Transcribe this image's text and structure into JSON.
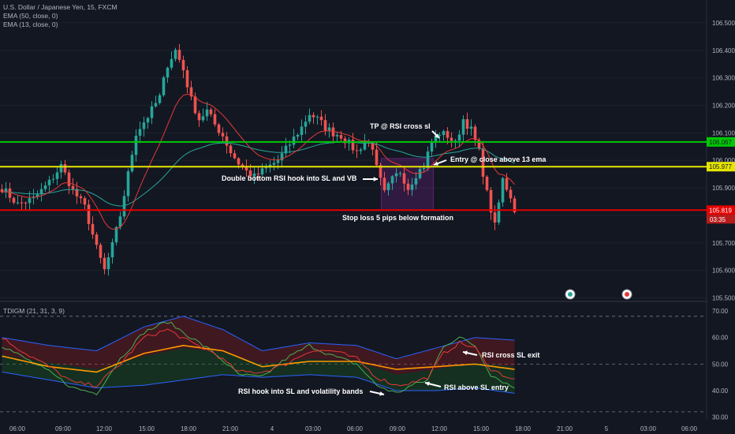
{
  "header": {
    "symbol": "U.S. Dollar / Japanese Yen, 15, FXCM",
    "ema50": "EMA (50, close, 0)",
    "ema13": "EMA (13, close, 0)"
  },
  "sub_header": {
    "indicator": "TDIGM (21, 31, 3, 9)"
  },
  "colors": {
    "background": "#131722",
    "up": "#26a69a",
    "down": "#ef5350",
    "green_line": "#00c805",
    "yellow_line": "#e5e500",
    "red_line": "#e50000",
    "ema13": "#e53935",
    "ema50": "#26a69a",
    "rsi": "#e53935",
    "signal": "#ff9800",
    "slow": "#4caf50",
    "bands": "#2962ff"
  },
  "annotations": {
    "tp": "TP @ RSI cross sl",
    "entry": "Entry @ close above 13 ema",
    "double_bottom": "Double bottom RSI hook into SL and VB",
    "stop_loss": "Stop loss 5 pips below formation",
    "rsi_cross": "RSI cross SL exit",
    "rsi_above": "RSI above SL entry",
    "rsi_hook": "RSI hook into SL and volatility bands"
  },
  "chart_data": [
    {
      "type": "candlestick",
      "name": "price",
      "y_ticks": [
        "106.500",
        "106.400",
        "106.300",
        "106.200",
        "106.100",
        "106.000",
        "105.900",
        "105.800",
        "105.700",
        "105.600",
        "105.500"
      ],
      "ylim": [
        105.49,
        106.56
      ],
      "x_ticks": [
        "06:00",
        "09:00",
        "12:00",
        "15:00",
        "18:00",
        "21:00",
        "4",
        "03:00",
        "06:00",
        "09:00",
        "12:00",
        "15:00",
        "18:00",
        "21:00",
        "5",
        "03:00",
        "06:00"
      ],
      "hlines": [
        {
          "label": "106.067",
          "value": 106.067,
          "color": "#00c805"
        },
        {
          "label": "105.977",
          "value": 105.977,
          "color": "#e5e500"
        },
        {
          "label": "105.819",
          "value": 105.819,
          "color": "#e50000"
        }
      ],
      "countdown": "03:35",
      "pivots": [
        [
          0,
          105.9
        ],
        [
          4,
          105.84
        ],
        [
          8,
          105.86
        ],
        [
          12,
          105.92
        ],
        [
          15,
          105.98
        ],
        [
          18,
          105.89
        ],
        [
          21,
          105.83
        ],
        [
          24,
          105.68
        ],
        [
          26,
          105.6
        ],
        [
          28,
          105.69
        ],
        [
          30,
          105.8
        ],
        [
          32,
          105.95
        ],
        [
          34,
          106.1
        ],
        [
          37,
          106.16
        ],
        [
          40,
          106.23
        ],
        [
          42,
          106.35
        ],
        [
          44,
          106.4
        ],
        [
          46,
          106.33
        ],
        [
          48,
          106.22
        ],
        [
          50,
          106.15
        ],
        [
          52,
          106.18
        ],
        [
          54,
          106.13
        ],
        [
          56,
          106.09
        ],
        [
          58,
          106.03
        ],
        [
          60,
          105.99
        ],
        [
          62,
          105.96
        ],
        [
          64,
          105.94
        ],
        [
          66,
          105.96
        ],
        [
          68,
          105.98
        ],
        [
          70,
          106.0
        ],
        [
          72,
          106.04
        ],
        [
          74,
          106.08
        ],
        [
          76,
          106.12
        ],
        [
          78,
          106.17
        ],
        [
          80,
          106.15
        ],
        [
          82,
          106.12
        ],
        [
          84,
          106.1
        ],
        [
          86,
          106.09
        ],
        [
          88,
          106.06
        ],
        [
          90,
          106.03
        ],
        [
          92,
          106.07
        ],
        [
          94,
          106.05
        ],
        [
          95,
          105.97
        ],
        [
          97,
          105.88
        ],
        [
          99,
          105.93
        ],
        [
          101,
          105.96
        ],
        [
          103,
          105.9
        ],
        [
          105,
          105.95
        ],
        [
          107,
          105.98
        ],
        [
          109,
          106.07
        ],
        [
          111,
          106.1
        ],
        [
          113,
          106.09
        ],
        [
          115,
          106.06
        ],
        [
          117,
          106.15
        ],
        [
          119,
          106.11
        ],
        [
          121,
          106.03
        ],
        [
          123,
          105.88
        ],
        [
          125,
          105.76
        ],
        [
          127,
          105.93
        ],
        [
          129,
          105.87
        ],
        [
          130,
          105.82
        ]
      ]
    },
    {
      "type": "line",
      "name": "TDIGM",
      "y_ticks": [
        "70.00",
        "60.00",
        "50.00",
        "40.00",
        "30.00"
      ],
      "ylim": [
        29,
        73
      ],
      "dashed_levels": [
        68,
        50,
        32
      ],
      "series": [
        {
          "key": "rsi",
          "pivots": [
            [
              0,
              60
            ],
            [
              6,
              54
            ],
            [
              12,
              49
            ],
            [
              18,
              43
            ],
            [
              24,
              42
            ],
            [
              30,
              50
            ],
            [
              36,
              60
            ],
            [
              42,
              63
            ],
            [
              48,
              58
            ],
            [
              54,
              54
            ],
            [
              60,
              47
            ],
            [
              66,
              47
            ],
            [
              72,
              50
            ],
            [
              78,
              55
            ],
            [
              84,
              55
            ],
            [
              90,
              52
            ],
            [
              95,
              45
            ],
            [
              100,
              42
            ],
            [
              104,
              43
            ],
            [
              108,
              45
            ],
            [
              112,
              54
            ],
            [
              116,
              58
            ],
            [
              120,
              56
            ],
            [
              124,
              48
            ],
            [
              130,
              44
            ]
          ]
        },
        {
          "key": "signal",
          "pivots": [
            [
              0,
              53
            ],
            [
              12,
              49
            ],
            [
              24,
              47
            ],
            [
              36,
              54
            ],
            [
              46,
              57
            ],
            [
              56,
              55
            ],
            [
              66,
              49
            ],
            [
              78,
              51
            ],
            [
              90,
              51
            ],
            [
              100,
              48
            ],
            [
              110,
              49
            ],
            [
              120,
              50
            ],
            [
              130,
              48
            ]
          ]
        },
        {
          "key": "slow",
          "pivots": [
            [
              0,
              57
            ],
            [
              6,
              52
            ],
            [
              12,
              47
            ],
            [
              18,
              41
            ],
            [
              24,
              39
            ],
            [
              30,
              52
            ],
            [
              36,
              62
            ],
            [
              42,
              66
            ],
            [
              48,
              60
            ],
            [
              54,
              54
            ],
            [
              60,
              46
            ],
            [
              66,
              45
            ],
            [
              72,
              52
            ],
            [
              78,
              57
            ],
            [
              84,
              53
            ],
            [
              90,
              50
            ],
            [
              95,
              42
            ],
            [
              100,
              39
            ],
            [
              104,
              42
            ],
            [
              108,
              44
            ],
            [
              112,
              57
            ],
            [
              116,
              60
            ],
            [
              120,
              57
            ],
            [
              124,
              46
            ],
            [
              130,
              41
            ]
          ]
        },
        {
          "key": "upper_band",
          "pivots": [
            [
              0,
              60
            ],
            [
              12,
              57
            ],
            [
              24,
              55
            ],
            [
              36,
              64
            ],
            [
              46,
              68
            ],
            [
              56,
              63
            ],
            [
              66,
              55
            ],
            [
              78,
              58
            ],
            [
              90,
              57
            ],
            [
              100,
              52
            ],
            [
              110,
              56
            ],
            [
              120,
              60
            ],
            [
              130,
              59
            ]
          ]
        },
        {
          "key": "lower_band",
          "pivots": [
            [
              0,
              47
            ],
            [
              12,
              44
            ],
            [
              24,
              41
            ],
            [
              36,
              42
            ],
            [
              46,
              44
            ],
            [
              56,
              46
            ],
            [
              66,
              45
            ],
            [
              78,
              46
            ],
            [
              90,
              45
            ],
            [
              100,
              40
            ],
            [
              110,
              40
            ],
            [
              120,
              41
            ],
            [
              130,
              39
            ]
          ]
        }
      ]
    }
  ]
}
